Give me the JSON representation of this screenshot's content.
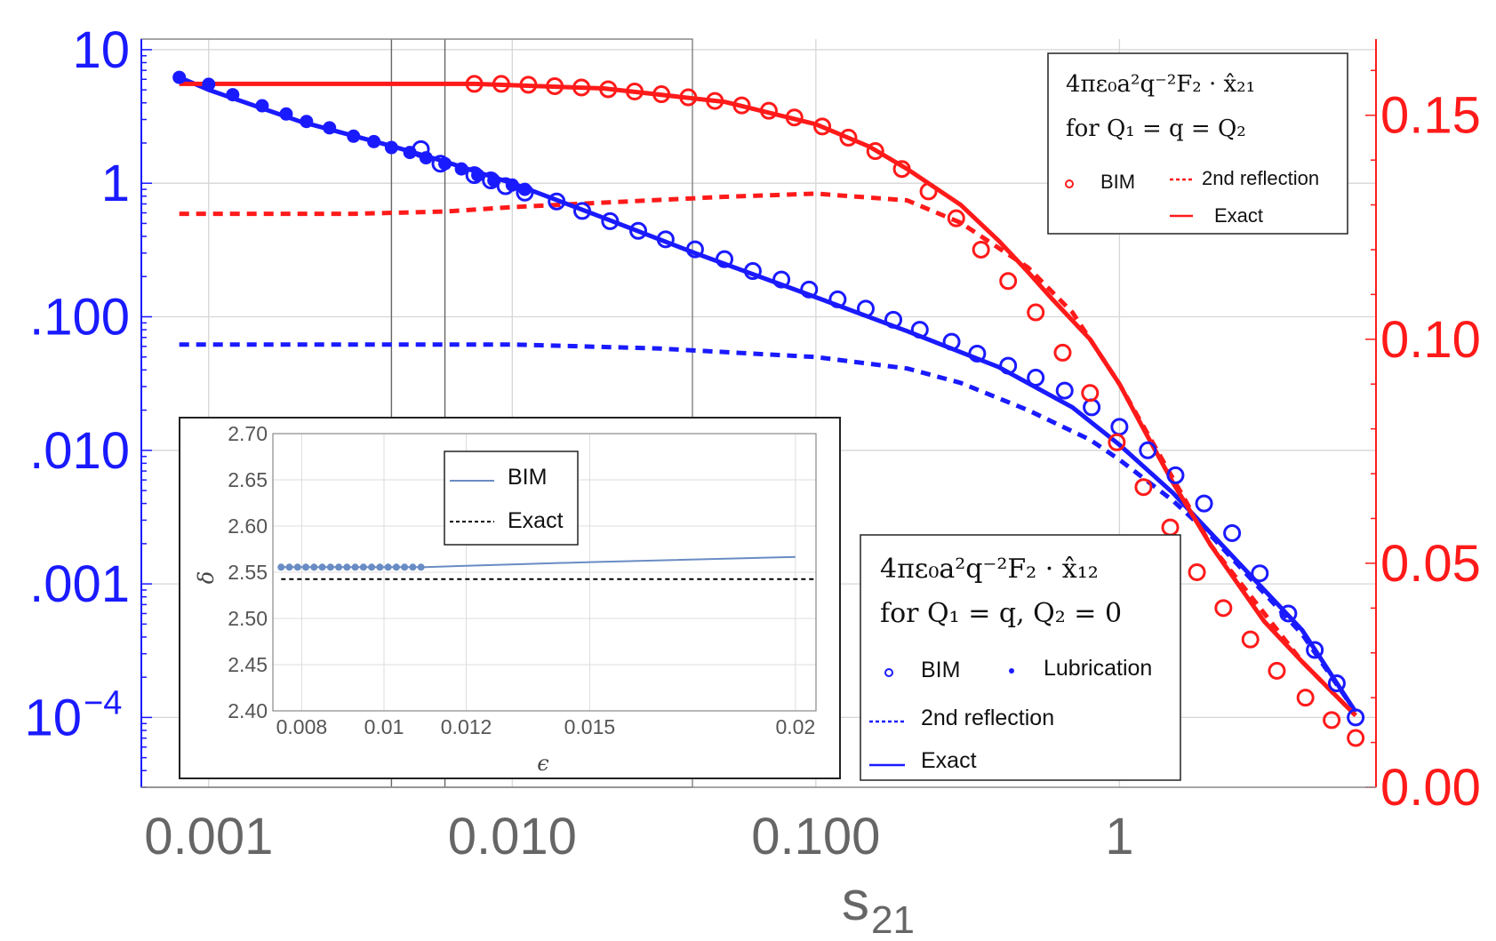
{
  "chart_data": [
    {
      "type": "line",
      "title": "",
      "xlabel": "s",
      "xlabel_sub": "21",
      "x_scale": "log",
      "xlim": [
        0.0006,
        7
      ],
      "x_ticks": [
        {
          "value": 0.001,
          "label": "0.001"
        },
        {
          "value": 0.01,
          "label": "0.010"
        },
        {
          "value": 0.1,
          "label": "0.100"
        },
        {
          "value": 1,
          "label": "1"
        }
      ],
      "left_axis": {
        "scale": "log",
        "ylim": [
          3e-05,
          12
        ],
        "color": "#1a1aff",
        "ticks": [
          {
            "value": 10,
            "label": "10"
          },
          {
            "value": 1,
            "label": "1"
          },
          {
            "value": 0.1,
            "label": ".100"
          },
          {
            "value": 0.01,
            "label": ".010"
          },
          {
            "value": 0.001,
            "label": ".001"
          },
          {
            "value": 0.0001,
            "label": "10",
            "sup": "−4"
          }
        ]
      },
      "right_axis": {
        "scale": "linear",
        "ylim": [
          0.0,
          0.167
        ],
        "color": "#ff1a1a",
        "ticks": [
          {
            "value": 0.15,
            "label": "0.15"
          },
          {
            "value": 0.1,
            "label": "0.10"
          },
          {
            "value": 0.05,
            "label": "0.05"
          },
          {
            "value": 0.0,
            "label": "0.00"
          }
        ]
      },
      "vertical_markers": [
        0.004,
        0.006
      ],
      "series": [
        {
          "name": "Exact",
          "axis": "left",
          "color": "#1a1aff",
          "style": "solid",
          "x": [
            0.0008,
            0.001,
            0.002,
            0.004,
            0.006,
            0.01,
            0.02,
            0.04,
            0.1,
            0.2,
            0.4,
            0.7,
            1,
            1.5,
            2,
            3,
            4,
            6
          ],
          "y": [
            6.2,
            5.0,
            2.9,
            1.9,
            1.45,
            1.0,
            0.55,
            0.3,
            0.14,
            0.078,
            0.042,
            0.021,
            0.011,
            0.0048,
            0.0024,
            0.0009,
            0.00045,
            0.00011
          ]
        },
        {
          "name": "2nd reflection",
          "axis": "left",
          "color": "#1a1aff",
          "style": "dashed",
          "x": [
            0.0008,
            0.01,
            0.03,
            0.1,
            0.2,
            0.3,
            0.5,
            0.8,
            1,
            1.5,
            2,
            3,
            4,
            6
          ],
          "y": [
            0.062,
            0.062,
            0.058,
            0.05,
            0.041,
            0.032,
            0.02,
            0.012,
            0.0085,
            0.0042,
            0.0023,
            0.00085,
            0.00042,
            0.00011
          ]
        },
        {
          "name": "BIM",
          "axis": "left",
          "color": "#1a1aff",
          "style": "open-circle",
          "x": [
            0.005,
            0.0058,
            0.0075,
            0.0085,
            0.0095,
            0.011,
            0.014,
            0.017,
            0.021,
            0.026,
            0.032,
            0.04,
            0.05,
            0.062,
            0.077,
            0.095,
            0.118,
            0.146,
            0.18,
            0.22,
            0.28,
            0.34,
            0.43,
            0.53,
            0.66,
            0.81,
            1.0,
            1.24,
            1.53,
            1.9,
            2.35,
            2.9,
            3.6,
            4.4,
            5.2,
            6.0
          ],
          "y": [
            1.8,
            1.4,
            1.15,
            1.05,
            0.95,
            0.85,
            0.73,
            0.62,
            0.52,
            0.44,
            0.38,
            0.32,
            0.27,
            0.22,
            0.19,
            0.16,
            0.135,
            0.115,
            0.095,
            0.08,
            0.065,
            0.053,
            0.043,
            0.035,
            0.028,
            0.021,
            0.015,
            0.01,
            0.0065,
            0.004,
            0.0024,
            0.0012,
            0.0006,
            0.00032,
            0.00018,
            0.0001
          ]
        },
        {
          "name": "Lubrication",
          "axis": "left",
          "color": "#1a1aff",
          "style": "filled-dot",
          "x": [
            0.0008,
            0.001,
            0.0012,
            0.0015,
            0.0018,
            0.0021,
            0.0025,
            0.003,
            0.0035,
            0.004,
            0.0046,
            0.0052,
            0.006,
            0.0068,
            0.0077,
            0.0087,
            0.01,
            0.011
          ],
          "y": [
            6.2,
            5.5,
            4.6,
            3.8,
            3.3,
            2.9,
            2.6,
            2.25,
            2.05,
            1.85,
            1.7,
            1.55,
            1.4,
            1.28,
            1.15,
            1.05,
            0.97,
            0.9
          ]
        },
        {
          "name": "Exact",
          "axis": "right",
          "color": "#ff1a1a",
          "style": "solid",
          "x": [
            0.0008,
            0.0075,
            0.02,
            0.05,
            0.1,
            0.15,
            0.2,
            0.3,
            0.4,
            0.5,
            0.6,
            0.8,
            1,
            1.2,
            1.5,
            2,
            3,
            4,
            6
          ],
          "y": [
            0.157,
            0.157,
            0.156,
            0.153,
            0.148,
            0.143,
            0.138,
            0.13,
            0.122,
            0.115,
            0.109,
            0.1,
            0.09,
            0.08,
            0.068,
            0.054,
            0.037,
            0.028,
            0.016
          ]
        },
        {
          "name": "2nd reflection",
          "axis": "right",
          "color": "#ff1a1a",
          "style": "dotted",
          "x": [
            0.0008,
            0.003,
            0.006,
            0.01,
            0.02,
            0.05,
            0.1,
            0.2,
            0.3,
            0.5,
            0.7,
            1,
            2,
            4,
            6
          ],
          "y": [
            0.128,
            0.128,
            0.1285,
            0.1295,
            0.1305,
            0.1318,
            0.1325,
            0.131,
            0.126,
            0.116,
            0.106,
            0.09,
            0.054,
            0.028,
            0.016
          ]
        },
        {
          "name": "BIM",
          "axis": "right",
          "color": "#ff1a1a",
          "style": "open-circle",
          "x": [
            0.0075,
            0.0092,
            0.0113,
            0.0138,
            0.0169,
            0.0207,
            0.0253,
            0.031,
            0.038,
            0.0465,
            0.057,
            0.07,
            0.085,
            0.105,
            0.128,
            0.157,
            0.192,
            0.235,
            0.29,
            0.35,
            0.43,
            0.53,
            0.65,
            0.8,
            0.98,
            1.2,
            1.47,
            1.8,
            2.2,
            2.7,
            3.3,
            4.1,
            5.0,
            6.0
          ],
          "y": [
            0.157,
            0.157,
            0.1568,
            0.1565,
            0.1562,
            0.1558,
            0.1553,
            0.1547,
            0.154,
            0.1532,
            0.1522,
            0.151,
            0.1495,
            0.1475,
            0.145,
            0.142,
            0.138,
            0.133,
            0.127,
            0.12,
            0.113,
            0.106,
            0.097,
            0.088,
            0.077,
            0.067,
            0.058,
            0.048,
            0.04,
            0.033,
            0.026,
            0.02,
            0.015,
            0.011
          ]
        }
      ],
      "legend_top": {
        "position": "top-right",
        "formula": "4πε₀a²q⁻²F₂ · x̂₂₁",
        "condition": "for Q₁ = q = Q₂",
        "entries": [
          "BIM",
          "2nd reflection",
          "Exact"
        ]
      },
      "legend_bottom": {
        "position": "bottom-right",
        "formula": "4πε₀a²q⁻²F₂ · x̂₁₂",
        "condition": "for Q₁ = q, Q₂ = 0",
        "entries": [
          "BIM",
          "Lubrication",
          "2nd reflection",
          "Exact"
        ]
      }
    },
    {
      "type": "line",
      "title": "",
      "xlabel": "ϵ",
      "ylabel": "δ",
      "xlim": [
        0.0073,
        0.0205
      ],
      "ylim": [
        2.4,
        2.7
      ],
      "x_ticks": [
        {
          "value": 0.008,
          "label": "0.008"
        },
        {
          "value": 0.01,
          "label": "0.01"
        },
        {
          "value": 0.012,
          "label": "0.012"
        },
        {
          "value": 0.015,
          "label": "0.015"
        },
        {
          "value": 0.02,
          "label": "0.02"
        }
      ],
      "y_ticks": [
        {
          "value": 2.7,
          "label": "2.70"
        },
        {
          "value": 2.65,
          "label": "2.65"
        },
        {
          "value": 2.6,
          "label": "2.60"
        },
        {
          "value": 2.55,
          "label": "2.55"
        },
        {
          "value": 2.5,
          "label": "2.50"
        },
        {
          "value": 2.45,
          "label": "2.45"
        },
        {
          "value": 2.4,
          "label": "2.40"
        }
      ],
      "series": [
        {
          "name": "BIM",
          "color": "#6a8cc4",
          "style": "solid",
          "x": [
            0.0075,
            0.009,
            0.011,
            0.012,
            0.015,
            0.02
          ],
          "y": [
            2.5555,
            2.5555,
            2.5555,
            2.557,
            2.561,
            2.5665
          ]
        },
        {
          "name": "BIM points",
          "color": "#6a8cc4",
          "style": "filled-dot",
          "x": [
            0.0075,
            0.0077,
            0.0079,
            0.0081,
            0.0083,
            0.0085,
            0.0087,
            0.0089,
            0.0091,
            0.0093,
            0.0095,
            0.0097,
            0.0099,
            0.0101,
            0.0103,
            0.0105,
            0.0107,
            0.0109
          ],
          "y": [
            2.5555,
            2.5555,
            2.5555,
            2.5555,
            2.5555,
            2.5555,
            2.5555,
            2.5555,
            2.5555,
            2.5555,
            2.5555,
            2.5555,
            2.5555,
            2.5555,
            2.5555,
            2.5555,
            2.5555,
            2.5555
          ]
        },
        {
          "name": "Exact",
          "color": "#000000",
          "style": "dashed",
          "x": [
            0.0075,
            0.0205
          ],
          "y": [
            2.5425,
            2.5425
          ]
        }
      ],
      "legend": {
        "position": "top-center",
        "entries": [
          "BIM",
          "Exact"
        ]
      }
    }
  ]
}
